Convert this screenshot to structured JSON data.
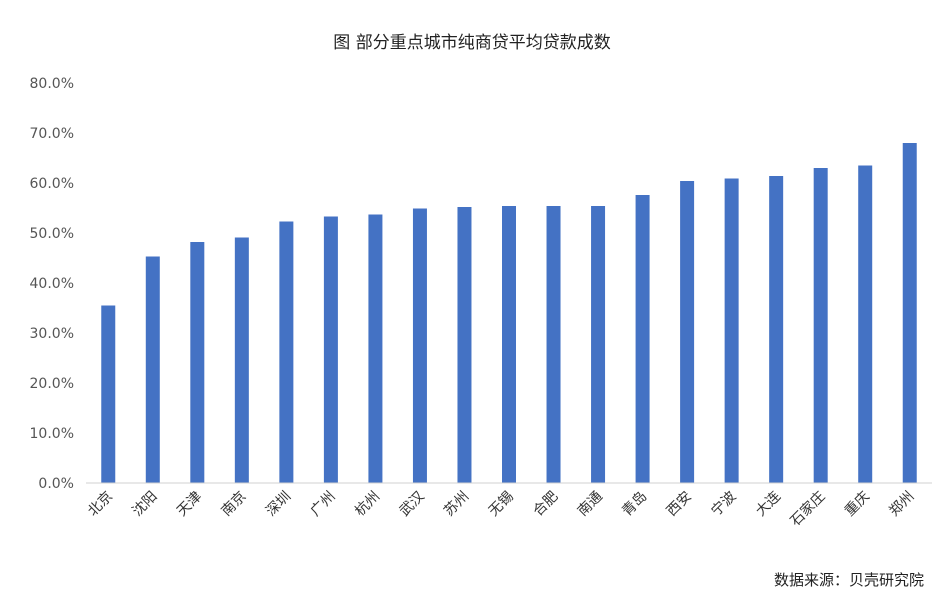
{
  "chart_data": {
    "type": "bar",
    "title": "图 部分重点城市纯商贷平均贷款成数",
    "source": "数据来源：贝壳研究院",
    "categories": [
      "北京",
      "沈阳",
      "天津",
      "南京",
      "深圳",
      "广州",
      "杭州",
      "武汉",
      "苏州",
      "无锡",
      "合肥",
      "南通",
      "青岛",
      "西安",
      "宁波",
      "大连",
      "石家庄",
      "重庆",
      "郑州"
    ],
    "values": [
      35.5,
      45.3,
      48.2,
      49.1,
      52.3,
      53.3,
      53.7,
      54.9,
      55.2,
      55.4,
      55.4,
      55.4,
      57.6,
      60.4,
      60.9,
      61.4,
      63.0,
      63.5,
      68.0
    ],
    "ylim": [
      0,
      80
    ],
    "yticks": [
      "0.0%",
      "10.0%",
      "20.0%",
      "30.0%",
      "40.0%",
      "50.0%",
      "60.0%",
      "70.0%",
      "80.0%"
    ],
    "bar_color": "#4472C4",
    "grid": false,
    "legend": "none"
  }
}
